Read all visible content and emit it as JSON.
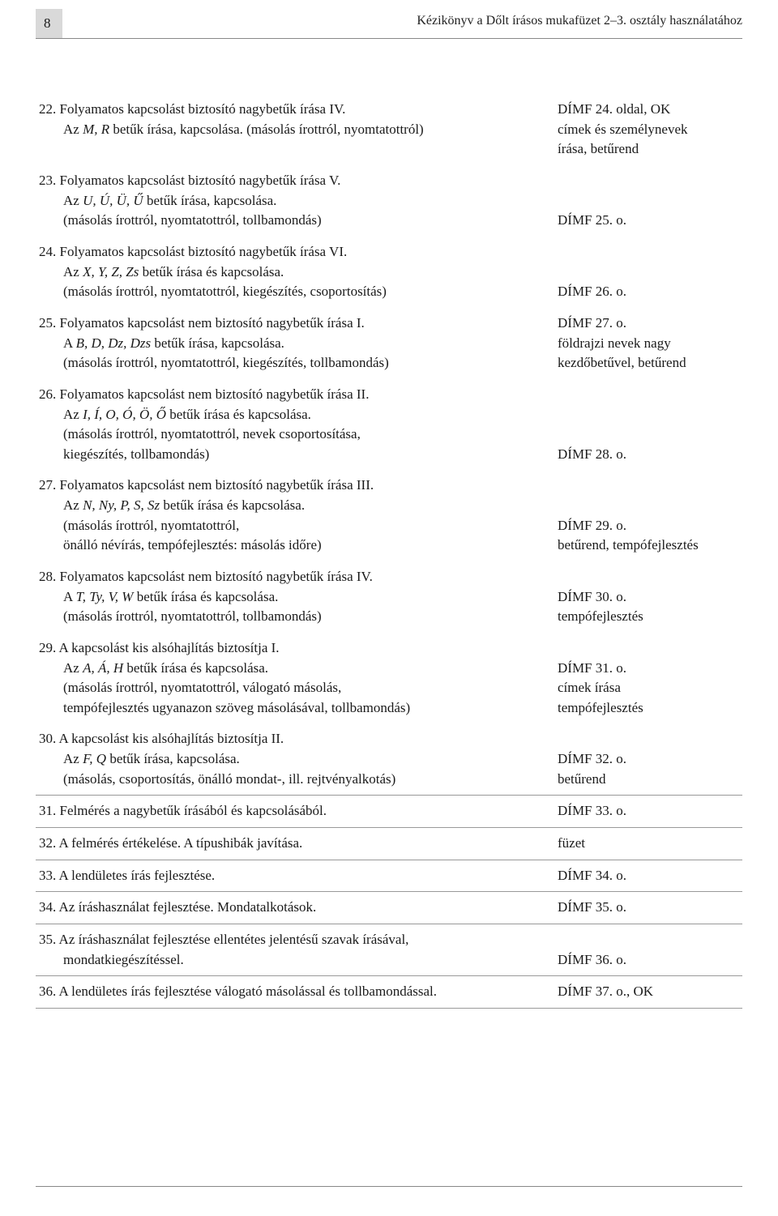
{
  "page_number": "8",
  "running_title": "Kézikönyv a Dőlt írásos mukafüzet 2–3. osztály használatához",
  "entries": [
    {
      "left_lines": [
        "22. Folyamatos kapcsolást biztosító nagybetűk írása IV.",
        "Az <em>M, R</em> betűk írása, kapcsolása. (másolás írottról, nyomtatottról)"
      ],
      "right_text": "DÍMF 24. oldal, OK\ncímek és személynevek\n írása, betűrend",
      "sep": false
    },
    {
      "left_lines": [
        "23. Folyamatos kapcsolást biztosító nagybetűk írása V.",
        "Az <em>U, Ú, Ü, Ű</em> betűk írása, kapcsolása.",
        "(másolás írottról, nyomtatottról, tollbamondás)"
      ],
      "right_text": "\n\nDÍMF 25. o.",
      "sep": false
    },
    {
      "left_lines": [
        "24. Folyamatos kapcsolást biztosító nagybetűk írása VI.",
        "Az <em>X, Y, Z, Zs</em> betűk írása és kapcsolása.",
        "(másolás írottról, nyomtatottról, kiegészítés, csoportosítás)"
      ],
      "right_text": "\n\nDÍMF 26. o.",
      "sep": false
    },
    {
      "left_lines": [
        "25. Folyamatos kapcsolást nem biztosító nagybetűk írása I.",
        "A <em>B, D, Dz, Dzs</em> betűk írása, kapcsolása.",
        "(másolás írottról, nyomtatottról, kiegészítés, tollbamondás)"
      ],
      "right_text": "DÍMF 27. o.\nföldrajzi nevek nagy\n kezdőbetűvel, betűrend",
      "sep": false
    },
    {
      "left_lines": [
        "26. Folyamatos kapcsolást nem biztosító nagybetűk írása II.",
        "Az <em>I, Í, O, Ó, Ö, Ő</em> betűk írása és kapcsolása.",
        "(másolás írottról, nyomtatottról, nevek csoportosítása,",
        "kiegészítés, tollbamondás)"
      ],
      "right_text": "\n\n\nDÍMF 28. o.",
      "sep": false
    },
    {
      "left_lines": [
        "27. Folyamatos kapcsolást nem biztosító nagybetűk írása III.",
        "Az <em>N, Ny, P, S, Sz</em> betűk írása és kapcsolása.",
        "(másolás írottról, nyomtatottról,",
        "önálló névírás, tempófejlesztés: másolás időre)"
      ],
      "right_text": "\n\nDÍMF 29. o.\nbetűrend, tempófejlesztés",
      "sep": false
    },
    {
      "left_lines": [
        "28. Folyamatos kapcsolást nem biztosító nagybetűk írása IV.",
        "A <em>T, Ty, V, W</em> betűk írása és kapcsolása.",
        "(másolás írottról, nyomtatottról, tollbamondás)"
      ],
      "right_text": "\nDÍMF 30. o.\ntempófejlesztés",
      "sep": false
    },
    {
      "left_lines": [
        "29. A kapcsolást kis alsóhajlítás biztosítja I.",
        "Az <em>A, Á, H</em> betűk írása és kapcsolása.",
        "(másolás írottról, nyomtatottról, válogató másolás,",
        "tempófejlesztés ugyanazon szöveg másolásával, tollbamondás)"
      ],
      "right_text": "\nDÍMF 31. o.\ncímek írása\ntempófejlesztés",
      "sep": false
    },
    {
      "left_lines": [
        "30. A kapcsolást kis alsóhajlítás biztosítja II.",
        "Az <em>F, Q</em> betűk írása, kapcsolása.",
        "(másolás, csoportosítás, önálló mondat-, ill. rejtvényalkotás)"
      ],
      "right_text": "\nDÍMF 32. o.\nbetűrend",
      "sep": true
    },
    {
      "left_lines": [
        "31. Felmérés a nagybetűk írásából és kapcsolásából."
      ],
      "right_text": "DÍMF 33. o.",
      "sep": true
    },
    {
      "left_lines": [
        "32. A felmérés értékelése. A típushibák javítása."
      ],
      "right_text": "füzet",
      "sep": true
    },
    {
      "left_lines": [
        "33. A lendületes írás fejlesztése."
      ],
      "right_text": "DÍMF 34. o.",
      "sep": true
    },
    {
      "left_lines": [
        "34. Az íráshasználat fejlesztése. Mondatalkotások."
      ],
      "right_text": "DÍMF 35. o.",
      "sep": true
    },
    {
      "left_lines": [
        "35. Az íráshasználat fejlesztése ellentétes jelentésű szavak írásával,",
        "mondatkiegészítéssel."
      ],
      "right_text": "\nDÍMF 36. o.",
      "sep": true
    },
    {
      "left_lines": [
        "36. A lendületes írás fejlesztése válogató másolással és tollbamondással."
      ],
      "right_text": "DÍMF 37. o., OK",
      "sep": true
    }
  ]
}
